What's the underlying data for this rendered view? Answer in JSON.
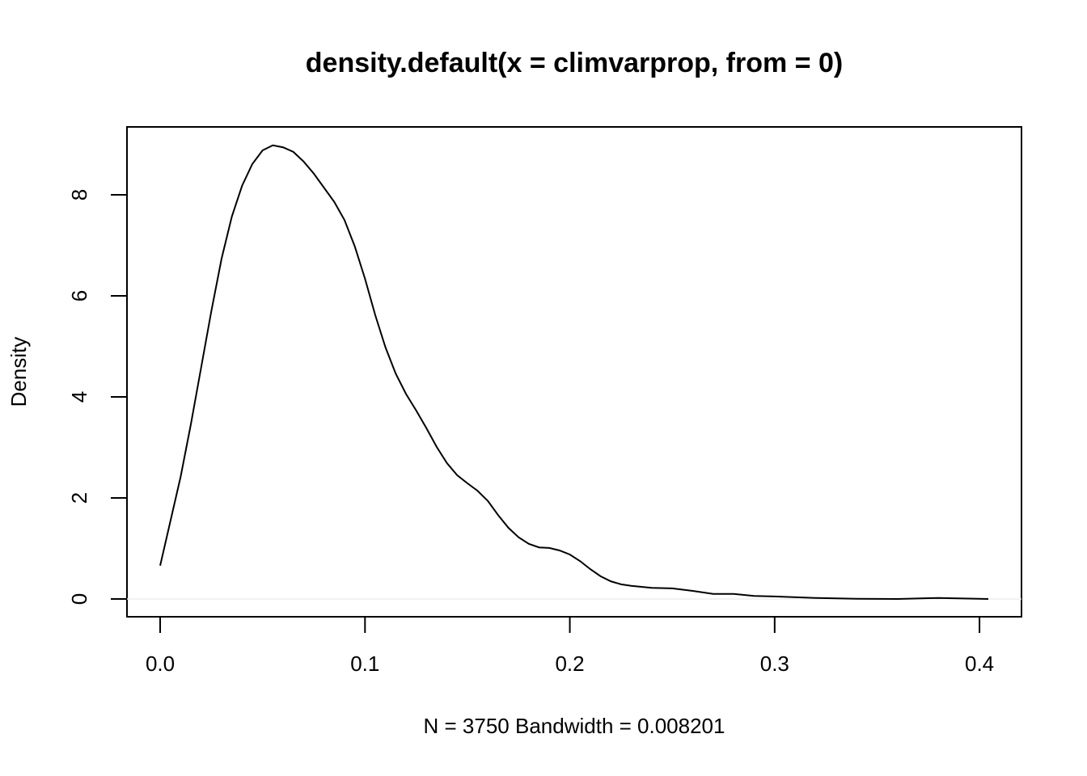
{
  "chart_data": {
    "type": "line",
    "title": "density.default(x = climvarprop, from = 0)",
    "x_label": "N = 3750   Bandwidth = 0.008201",
    "y_label": "Density",
    "x": [
      0,
      0.005,
      0.01,
      0.015,
      0.02,
      0.025,
      0.03,
      0.035,
      0.04,
      0.045,
      0.05,
      0.055,
      0.06,
      0.065,
      0.07,
      0.075,
      0.08,
      0.085,
      0.09,
      0.095,
      0.1,
      0.105,
      0.11,
      0.115,
      0.12,
      0.125,
      0.13,
      0.135,
      0.14,
      0.145,
      0.15,
      0.155,
      0.16,
      0.165,
      0.17,
      0.175,
      0.18,
      0.185,
      0.19,
      0.195,
      0.2,
      0.205,
      0.21,
      0.215,
      0.22,
      0.225,
      0.23,
      0.24,
      0.25,
      0.26,
      0.27,
      0.28,
      0.29,
      0.3,
      0.32,
      0.34,
      0.36,
      0.38,
      0.4043
    ],
    "values": [
      0.66,
      1.54,
      2.42,
      3.46,
      4.58,
      5.7,
      6.74,
      7.57,
      8.18,
      8.61,
      8.88,
      8.98,
      8.94,
      8.85,
      8.66,
      8.42,
      8.14,
      7.86,
      7.5,
      6.98,
      6.34,
      5.62,
      4.98,
      4.46,
      4.06,
      3.73,
      3.38,
      3.01,
      2.69,
      2.45,
      2.29,
      2.14,
      1.94,
      1.66,
      1.41,
      1.22,
      1.09,
      1.02,
      1.01,
      0.96,
      0.88,
      0.75,
      0.59,
      0.45,
      0.35,
      0.29,
      0.26,
      0.22,
      0.21,
      0.16,
      0.1,
      0.1,
      0.06,
      0.05,
      0.02,
      0.005,
      0,
      0.02,
      0
    ],
    "color": "#000000",
    "zero_line": true,
    "xlim": [
      -0.0162,
      0.4205
    ],
    "ylim": [
      -0.352,
      9.344
    ],
    "xticks": [
      {
        "value": 0,
        "label": "0.0"
      },
      0.1,
      0.2,
      0.3,
      0.4
    ],
    "yticks": [
      0,
      2,
      4,
      6,
      8
    ]
  }
}
